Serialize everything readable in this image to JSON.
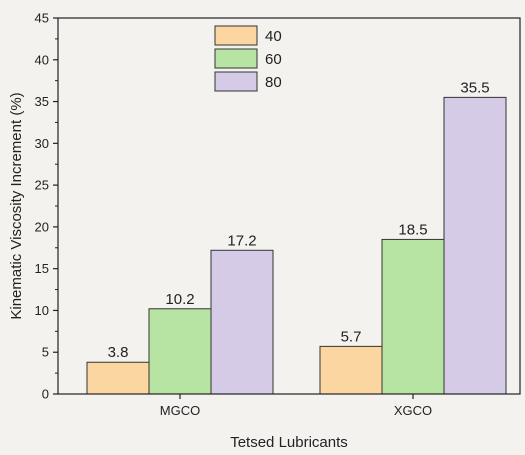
{
  "chart_data": {
    "type": "bar",
    "title": "",
    "xlabel": "Tetsed Lubricants",
    "ylabel": "Kinematic Viscosity Increment (%)",
    "categories": [
      "MGCO",
      "XGCO"
    ],
    "series": [
      {
        "name": "40",
        "values": [
          3.8,
          5.7
        ],
        "color": "#fbd6a0"
      },
      {
        "name": "60",
        "values": [
          10.2,
          18.5
        ],
        "color": "#b7e4a3"
      },
      {
        "name": "80",
        "values": [
          17.2,
          35.5
        ],
        "color": "#d6cbe6"
      }
    ],
    "data_labels": [
      "3.8",
      "10.2",
      "17.2",
      "5.7",
      "18.5",
      "35.5"
    ],
    "ylim": [
      0,
      45
    ],
    "yticks": [
      0,
      5,
      10,
      15,
      20,
      25,
      30,
      35,
      40,
      45
    ],
    "ytick_labels": [
      "0",
      "5",
      "10",
      "15",
      "20",
      "25",
      "30",
      "35",
      "40",
      "45"
    ],
    "grid": false,
    "legend_position": "top-center"
  }
}
